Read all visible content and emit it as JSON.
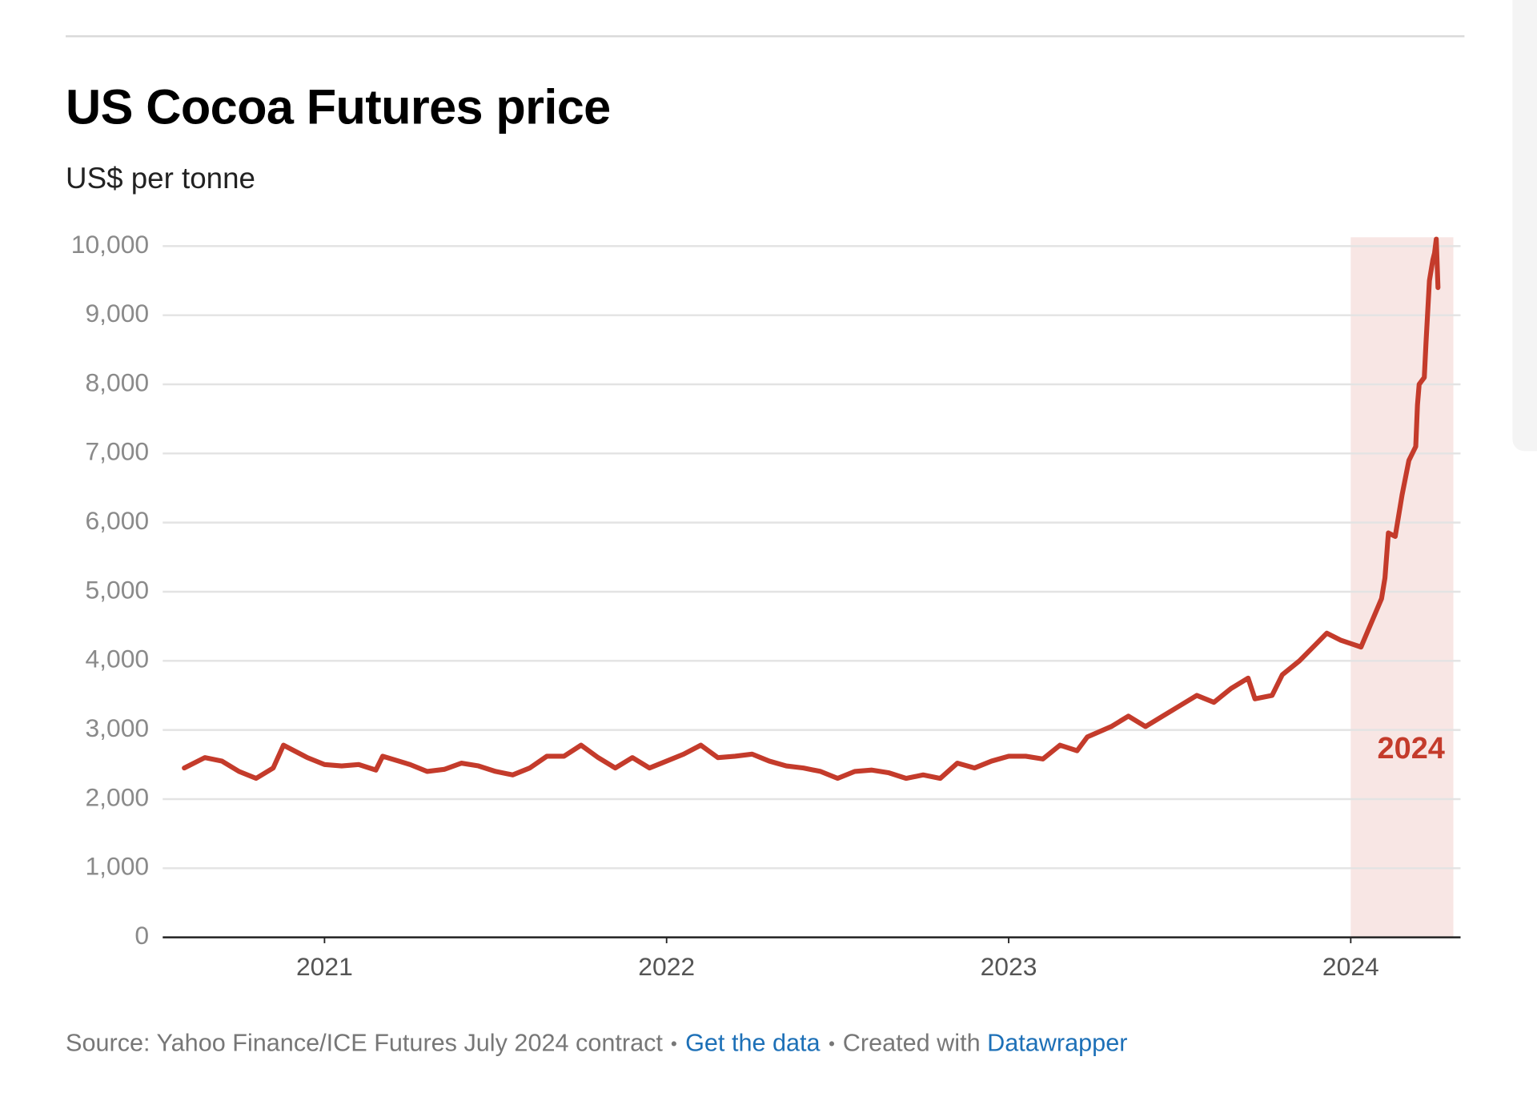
{
  "chart_data": {
    "type": "line",
    "title": "US Cocoa Futures price",
    "subtitle": "US$ per tonne",
    "x": [
      2020.59,
      2020.65,
      2020.7,
      2020.75,
      2020.8,
      2020.85,
      2020.88,
      2020.95,
      2021.0,
      2021.05,
      2021.1,
      2021.15,
      2021.17,
      2021.25,
      2021.3,
      2021.35,
      2021.4,
      2021.45,
      2021.5,
      2021.55,
      2021.6,
      2021.65,
      2021.7,
      2021.75,
      2021.8,
      2021.85,
      2021.9,
      2021.95,
      2022.0,
      2022.05,
      2022.1,
      2022.15,
      2022.2,
      2022.25,
      2022.3,
      2022.35,
      2022.4,
      2022.45,
      2022.5,
      2022.55,
      2022.6,
      2022.65,
      2022.7,
      2022.75,
      2022.8,
      2022.85,
      2022.9,
      2022.95,
      2023.0,
      2023.05,
      2023.1,
      2023.15,
      2023.2,
      2023.23,
      2023.3,
      2023.35,
      2023.4,
      2023.45,
      2023.5,
      2023.55,
      2023.6,
      2023.65,
      2023.7,
      2023.72,
      2023.77,
      2023.8,
      2023.85,
      2023.9,
      2023.93,
      2023.97,
      2024.0,
      2024.03,
      2024.06,
      2024.09,
      2024.1,
      2024.11,
      2024.13,
      2024.15,
      2024.17,
      2024.19,
      2024.195,
      2024.2,
      2024.215,
      2024.22,
      2024.23,
      2024.24,
      2024.245,
      2024.25,
      2024.255
    ],
    "series": [
      {
        "color": "#c43b2b",
        "values": [
          2450,
          2600,
          2550,
          2400,
          2300,
          2450,
          2780,
          2600,
          2500,
          2480,
          2500,
          2420,
          2620,
          2500,
          2400,
          2430,
          2520,
          2480,
          2400,
          2350,
          2450,
          2620,
          2620,
          2780,
          2600,
          2450,
          2600,
          2450,
          2550,
          2650,
          2780,
          2600,
          2620,
          2650,
          2550,
          2480,
          2450,
          2400,
          2300,
          2400,
          2420,
          2380,
          2300,
          2350,
          2300,
          2520,
          2450,
          2550,
          2620,
          2620,
          2580,
          2780,
          2700,
          2900,
          3050,
          3200,
          3050,
          3200,
          3350,
          3500,
          3400,
          3600,
          3750,
          3450,
          3500,
          3800,
          4000,
          4250,
          4400,
          4300,
          4250,
          4200,
          4550,
          4900,
          5200,
          5850,
          5800,
          6400,
          6900,
          7100,
          7700,
          8000,
          8100,
          8600,
          9500,
          9800,
          9900,
          10100,
          9400
        ]
      }
    ],
    "xlim": [
      2020.527,
      2024.321
    ],
    "xticks": [
      2021,
      2022,
      2023,
      2024
    ],
    "ylim": [
      0,
      10000
    ],
    "yticks": [
      0,
      {
        "value": 1000,
        "label": "1,000"
      },
      {
        "value": 2000,
        "label": "2,000"
      },
      {
        "value": 3000,
        "label": "3,000"
      },
      {
        "value": 4000,
        "label": "4,000"
      },
      {
        "value": 5000,
        "label": "5,000"
      },
      {
        "value": 6000,
        "label": "6,000"
      },
      {
        "value": 7000,
        "label": "7,000"
      },
      {
        "value": 8000,
        "label": "8,000"
      },
      {
        "value": 9000,
        "label": "9,000"
      },
      {
        "value": 10000,
        "label": "10,000"
      }
    ],
    "grid": true,
    "highlight": {
      "range": [
        2024,
        2024.3
      ],
      "label": "2024",
      "color": "#f8e6e4"
    },
    "footer": {
      "source": "Source: Yahoo Finance/ICE Futures July 2024 contract",
      "data_link": "Get the data",
      "credit": "Created with",
      "credit_link": "Datawrapper"
    }
  }
}
